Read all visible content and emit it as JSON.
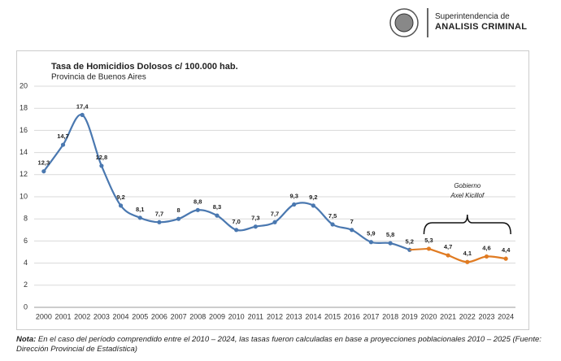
{
  "header": {
    "line1": "Superintendencia de",
    "line2": "ANALISIS CRIMINAL"
  },
  "chart_data": {
    "type": "line",
    "title": "Tasa de Homicidios Dolosos c/ 100.000 hab.",
    "subtitle": "Provincia de Buenos Aires",
    "categories": [
      "2000",
      "2001",
      "2002",
      "2003",
      "2004",
      "2005",
      "2006",
      "2007",
      "2008",
      "2009",
      "2010",
      "2011",
      "2012",
      "2013",
      "2014",
      "2015",
      "2016",
      "2017",
      "2018",
      "2019",
      "2020",
      "2021",
      "2022",
      "2023",
      "2024"
    ],
    "series": [
      {
        "color": "#4a78b0",
        "values": [
          12.3,
          14.7,
          17.4,
          12.8,
          9.2,
          8.1,
          7.7,
          8,
          8.8,
          8.3,
          7.0,
          7.3,
          7.7,
          9.3,
          9.2,
          7.5,
          7,
          5.9,
          5.8,
          5.2,
          null,
          null,
          null,
          null,
          null
        ],
        "value_labels": [
          "12,3",
          "14,7",
          "17,4",
          "12,8",
          "9,2",
          "8,1",
          "7,7",
          "8",
          "8,8",
          "8,3",
          "7,0",
          "7,3",
          "7,7",
          "9,3",
          "9,2",
          "7,5",
          "7",
          "5,9",
          "5,8",
          "5,2",
          null,
          null,
          null,
          null,
          null
        ]
      },
      {
        "color": "#e07b22",
        "values": [
          null,
          null,
          null,
          null,
          null,
          null,
          null,
          null,
          null,
          null,
          null,
          null,
          null,
          null,
          null,
          null,
          null,
          null,
          null,
          null,
          5.3,
          4.7,
          4.1,
          4.6,
          4.4
        ],
        "value_labels": [
          null,
          null,
          null,
          null,
          null,
          null,
          null,
          null,
          null,
          null,
          null,
          null,
          null,
          null,
          null,
          null,
          null,
          null,
          null,
          null,
          "5,3",
          "4,7",
          "4,1",
          "4,6",
          "4,4"
        ]
      }
    ],
    "ylim": [
      0,
      20
    ],
    "yticks": [
      0,
      2,
      4,
      6,
      8,
      10,
      12,
      14,
      16,
      18,
      20
    ],
    "grid": true,
    "annotation": [
      "Gobierno",
      "Axel Kicillof"
    ]
  },
  "note": {
    "label": "Nota:",
    "text": " En el caso del período comprendido entre el 2010 – 2024, las tasas fueron calculadas en base a proyecciones poblacionales 2010 – 2025 (Fuente: Dirección Provincial de Estadística)"
  }
}
